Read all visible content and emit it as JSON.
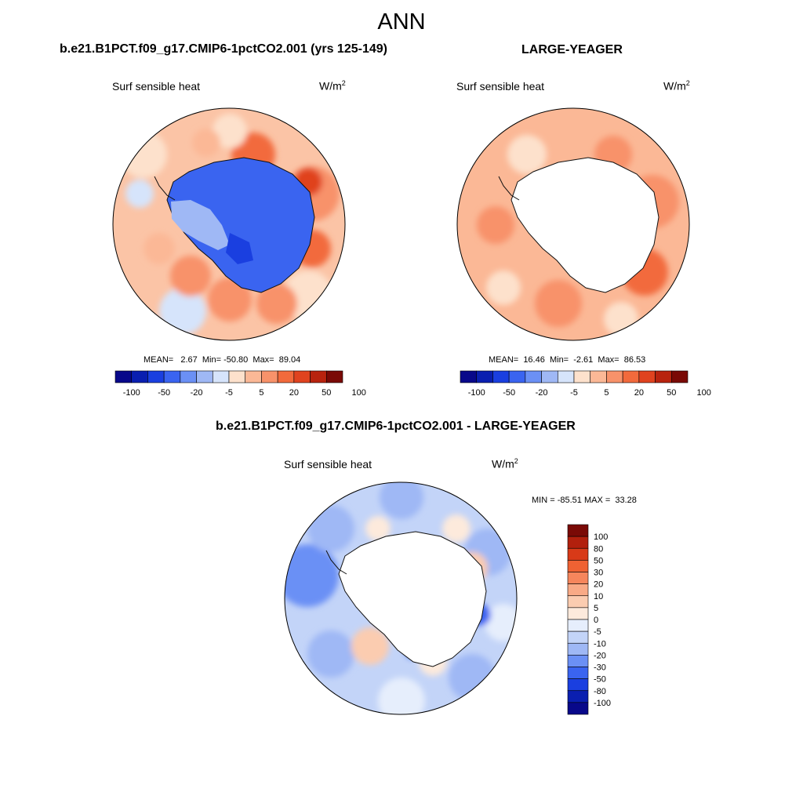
{
  "main_title": "ANN",
  "left_panel": {
    "title": "b.e21.B1PCT.f09_g17.CMIP6-1pctCO2.001 (yrs 125-149)",
    "variable": "Surf sensible heat",
    "unit_base": "W/m",
    "unit_exp": "2",
    "stats": "MEAN=   2.67  Min= -50.80  Max=  89.04"
  },
  "right_panel": {
    "title": "LARGE-YEAGER",
    "variable": "Surf sensible heat",
    "unit_base": "W/m",
    "unit_exp": "2",
    "stats": "MEAN=  16.46  Min=  -2.61  Max=  86.53"
  },
  "diff_panel": {
    "title": "b.e21.B1PCT.f09_g17.CMIP6-1pctCO2.001 - LARGE-YEAGER",
    "variable": "Surf sensible heat",
    "unit_base": "W/m",
    "unit_exp": "2",
    "stats": "MIN = -85.51 MAX =  33.28"
  },
  "colors": {
    "scale_14": [
      "#08088a",
      "#0a1fb0",
      "#1a3fe0",
      "#3a64f0",
      "#6b90f5",
      "#9fb8f5",
      "#d6e4fb",
      "#fde1cc",
      "#fbb896",
      "#f8926a",
      "#f26a3c",
      "#e0431f",
      "#b8230e",
      "#7a0a06"
    ],
    "scale_16": [
      "#08088a",
      "#0a1fb0",
      "#1a3fe0",
      "#3a64f0",
      "#6b90f5",
      "#9fb8f5",
      "#c3d4f8",
      "#e6eefc",
      "#fdeadc",
      "#fbccb0",
      "#f9aa86",
      "#f6865c",
      "#ef6233",
      "#d83a18",
      "#b2200d",
      "#7a0a06"
    ]
  },
  "chart_data": [
    {
      "type": "heatmap",
      "subtype": "polar-stereographic contour map (Southern Hemisphere)",
      "title": "b.e21.B1PCT.f09_g17.CMIP6-1pctCO2.001 (yrs 125-149)",
      "variable": "Surf sensible heat",
      "units": "W/m2",
      "mean": 2.67,
      "min": -50.8,
      "max": 89.04,
      "contour_levels": [
        -100,
        -50,
        -20,
        -5,
        5,
        20,
        50,
        100
      ],
      "colorbar_tick_labels": [
        "-100",
        "-50",
        "-20",
        "-5",
        "5",
        "20",
        "50",
        "100"
      ],
      "pattern": "Antarctic continent mostly blue (negative); surrounding ocean light-to-medium red (positive), strongest along coast"
    },
    {
      "type": "heatmap",
      "subtype": "polar-stereographic contour map (Southern Hemisphere)",
      "title": "LARGE-YEAGER",
      "variable": "Surf sensible heat",
      "units": "W/m2",
      "mean": 16.46,
      "min": -2.61,
      "max": 86.53,
      "contour_levels": [
        -100,
        -50,
        -20,
        -5,
        5,
        20,
        50,
        100
      ],
      "colorbar_tick_labels": [
        "-100",
        "-50",
        "-20",
        "-5",
        "5",
        "20",
        "50",
        "100"
      ],
      "pattern": "Ocean-only field, continent masked white; values positive, mostly 5-50"
    },
    {
      "type": "heatmap",
      "subtype": "polar-stereographic contour map (Southern Hemisphere)",
      "title": "b.e21.B1PCT.f09_g17.CMIP6-1pctCO2.001 - LARGE-YEAGER",
      "variable": "Surf sensible heat",
      "units": "W/m2",
      "min": -85.51,
      "max": 33.28,
      "contour_levels": [
        100,
        80,
        50,
        30,
        20,
        10,
        5,
        0,
        -5,
        -10,
        -20,
        -30,
        -50,
        -80,
        -100
      ],
      "colorbar_tick_labels": [
        "100",
        "80",
        "50",
        "30",
        "20",
        "10",
        "5",
        "0",
        "-5",
        "-10",
        "-20",
        "-30",
        "-50",
        "-80",
        "-100"
      ],
      "pattern": "Difference field mostly light-to-medium blue over ocean; continent masked white; scattered red patches near coast"
    }
  ]
}
